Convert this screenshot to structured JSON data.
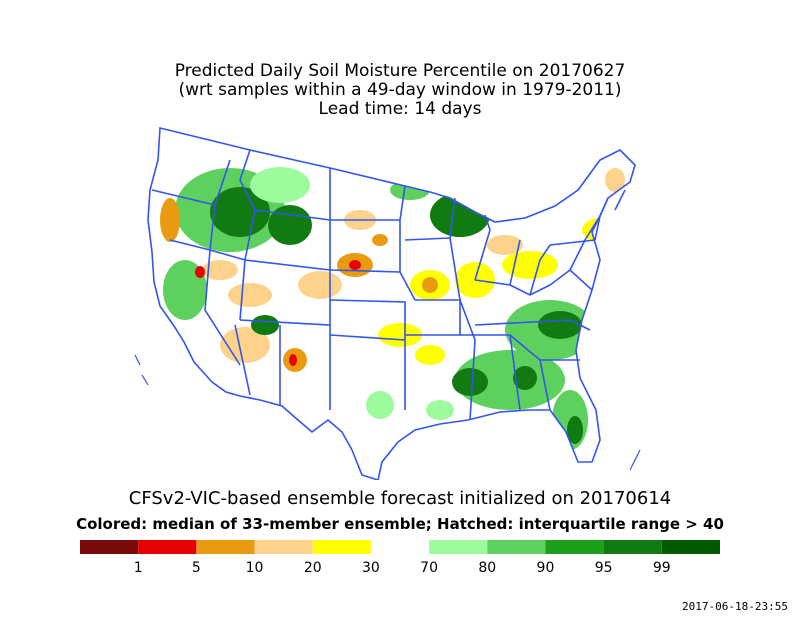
{
  "title": {
    "line1": "Predicted Daily Soil Moisture Percentile on 20170627",
    "line2": "(wrt samples within a 49-day window in 1979-2011)",
    "line3": "Lead time: 14 days"
  },
  "footer": {
    "line1": "CFSv2-VIC-based ensemble forecast initialized on 20170614",
    "line2": "Colored: median of 33-member ensemble; Hatched: interquartile range > 40"
  },
  "timestamp": "2017-06-18-23:55",
  "colors": {
    "boundary": "#3355ee",
    "dry_dark": "#7a0a0a",
    "dry_red": "#e60000",
    "dry_orange": "#e89b10",
    "dry_tan": "#fdd28a",
    "dry_yellow": "#ffff00",
    "wet_light": "#9cfb9c",
    "wet_mid": "#5ed05e",
    "wet_green": "#1ca01c",
    "wet_dark": "#117a11",
    "wet_darkest": "#005a00"
  },
  "legend": {
    "bins": [
      {
        "color": "#7a0a0a"
      },
      {
        "color": "#e60000"
      },
      {
        "color": "#e89b10"
      },
      {
        "color": "#fdd28a"
      },
      {
        "color": "#ffff00"
      },
      {
        "color": "#ffffff"
      },
      {
        "color": "#9cfb9c"
      },
      {
        "color": "#5ed05e"
      },
      {
        "color": "#1ca01c"
      },
      {
        "color": "#117a11"
      },
      {
        "color": "#005a00"
      }
    ],
    "tick_labels": [
      "1",
      "5",
      "10",
      "20",
      "30",
      "70",
      "80",
      "90",
      "95",
      "99"
    ]
  }
}
